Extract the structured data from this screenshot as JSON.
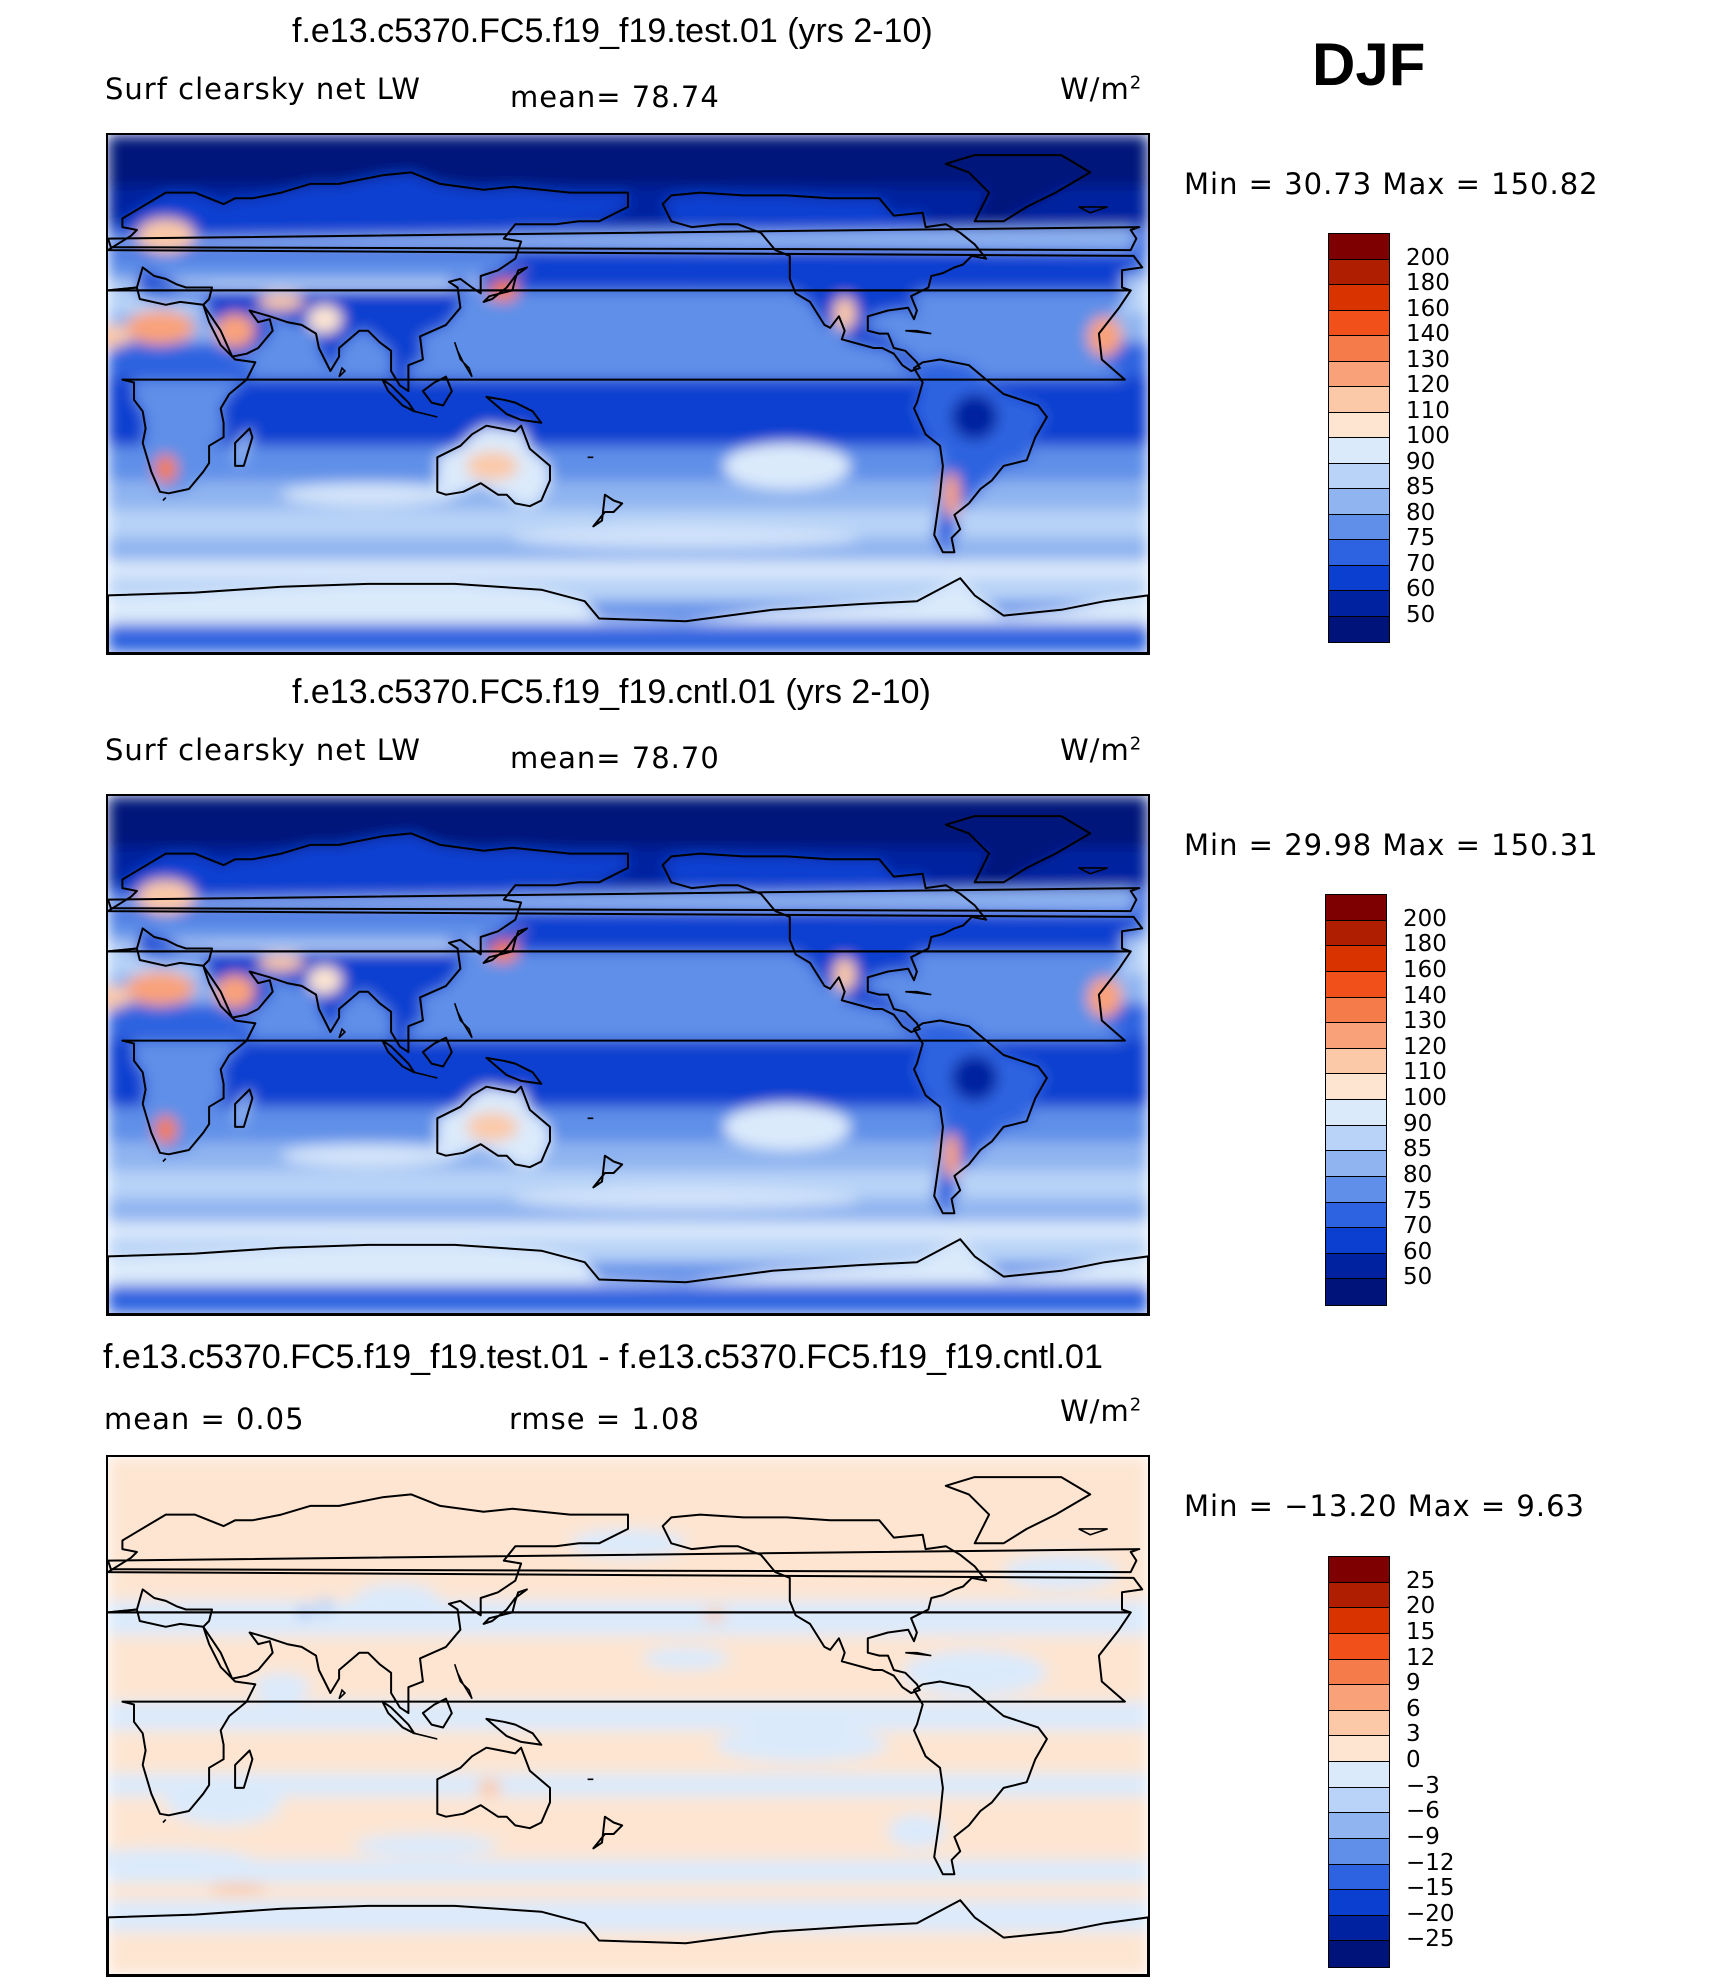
{
  "season": "DJF",
  "panels": [
    {
      "id": "test",
      "title": "f.e13.c5370.FC5.f19_f19.test.01 (yrs 2-10)",
      "left_label": "Surf clearsky net LW",
      "mid_label": "mean=   78.74",
      "units": "W/m",
      "units_sup": "2",
      "minmax": "Min  =   30.73  Max  =  150.82",
      "colorbar_labels": [
        "200",
        "180",
        "160",
        "140",
        "130",
        "120",
        "110",
        "100",
        "90",
        "85",
        "80",
        "75",
        "70",
        "60",
        "50"
      ],
      "colors": [
        "#7f0000",
        "#b01e00",
        "#d93300",
        "#f2501a",
        "#f57c4a",
        "#f9a27a",
        "#fbc9a8",
        "#fde5d2",
        "#dbeafb",
        "#b8d3f7",
        "#8fb4f0",
        "#5f8fe8",
        "#2d63e0",
        "#0a3fd0",
        "#0022a0",
        "#00137a"
      ],
      "map_style": "base"
    },
    {
      "id": "cntl",
      "title": "f.e13.c5370.FC5.f19_f19.cntl.01 (yrs 2-10)",
      "left_label": "Surf clearsky net LW",
      "mid_label": "mean=   78.70",
      "units": "W/m",
      "units_sup": "2",
      "minmax": "Min  =   29.98  Max  =  150.31",
      "colorbar_labels": [
        "200",
        "180",
        "160",
        "140",
        "130",
        "120",
        "110",
        "100",
        "90",
        "85",
        "80",
        "75",
        "70",
        "60",
        "50"
      ],
      "colors": [
        "#7f0000",
        "#b01e00",
        "#d93300",
        "#f2501a",
        "#f57c4a",
        "#f9a27a",
        "#fbc9a8",
        "#fde5d2",
        "#dbeafb",
        "#b8d3f7",
        "#8fb4f0",
        "#5f8fe8",
        "#2d63e0",
        "#0a3fd0",
        "#0022a0",
        "#00137a"
      ],
      "map_style": "base"
    },
    {
      "id": "diff",
      "title": "f.e13.c5370.FC5.f19_f19.test.01 - f.e13.c5370.FC5.f19_f19.cntl.01",
      "left_label": "mean  =      0.05",
      "mid_label": "rmse  =      1.08",
      "units": "W/m",
      "units_sup": "2",
      "minmax": "Min  = −13.20  Max  =        9.63",
      "colorbar_labels": [
        "25",
        "20",
        "15",
        "12",
        "9",
        "6",
        "3",
        "0",
        "−3",
        "−6",
        "−9",
        "−12",
        "−15",
        "−20",
        "−25"
      ],
      "colors": [
        "#7f0000",
        "#b01e00",
        "#d93300",
        "#f2501a",
        "#f57c4a",
        "#f9a27a",
        "#fbc9a8",
        "#fde5d2",
        "#dbeafb",
        "#b8d3f7",
        "#8fb4f0",
        "#5f8fe8",
        "#2d63e0",
        "#0a3fd0",
        "#0022a0",
        "#00137a"
      ],
      "map_style": "diff"
    }
  ]
}
